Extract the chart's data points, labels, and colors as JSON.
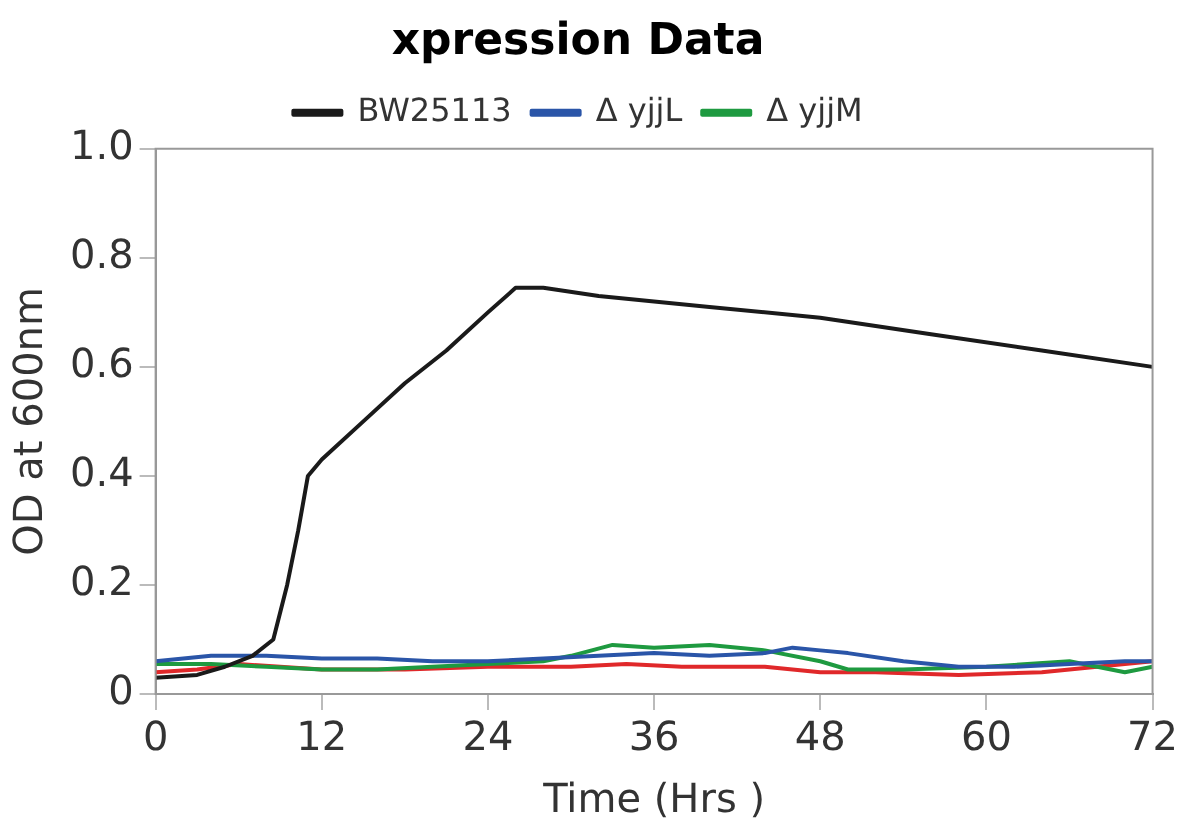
{
  "chart_data": {
    "type": "line",
    "title": "xpression Data",
    "xlabel": "Time (Hrs )",
    "ylabel": "OD at 600nm",
    "xlim": [
      0,
      72
    ],
    "xticks": [
      0,
      12,
      24,
      36,
      48,
      60,
      72
    ],
    "ylim": [
      0,
      1
    ],
    "yticks": [
      0,
      0.2,
      0.4,
      0.6,
      0.8,
      {
        "value": 1,
        "label": "1.0"
      }
    ],
    "grid": false,
    "legend": "top",
    "marker": "none",
    "line_style": "solid",
    "series": [
      {
        "name": "BW25113",
        "color": "#1a1a1a",
        "x": [
          0,
          3,
          5,
          7,
          8.5,
          9.5,
          10.3,
          11,
          12,
          15,
          18,
          21,
          24,
          26,
          28,
          32,
          40,
          48,
          56,
          64,
          72
        ],
        "values": [
          0.03,
          0.035,
          0.05,
          0.07,
          0.1,
          0.2,
          0.3,
          0.4,
          0.43,
          0.5,
          0.57,
          0.63,
          0.7,
          0.745,
          0.745,
          0.73,
          0.71,
          0.69,
          0.66,
          0.63,
          0.6
        ]
      },
      {
        "name": "Δ yjjL",
        "color": "#2a55a8",
        "x": [
          0,
          4,
          8,
          12,
          16,
          20,
          24,
          28,
          32,
          36,
          40,
          44,
          46,
          48,
          50,
          54,
          58,
          62,
          66,
          70,
          72
        ],
        "values": [
          0.06,
          0.07,
          0.07,
          0.065,
          0.065,
          0.06,
          0.06,
          0.065,
          0.07,
          0.075,
          0.07,
          0.075,
          0.085,
          0.08,
          0.075,
          0.06,
          0.05,
          0.05,
          0.055,
          0.06,
          0.06
        ]
      },
      {
        "name": "Δ yjjM",
        "color": "#1e9a40",
        "x": [
          0,
          4,
          8,
          12,
          16,
          20,
          24,
          28,
          30,
          33,
          36,
          40,
          44,
          48,
          50,
          54,
          60,
          66,
          70,
          72
        ],
        "values": [
          0.055,
          0.055,
          0.05,
          0.045,
          0.045,
          0.05,
          0.055,
          0.06,
          0.07,
          0.09,
          0.085,
          0.09,
          0.08,
          0.06,
          0.045,
          0.045,
          0.05,
          0.06,
          0.04,
          0.05
        ]
      },
      {
        "color": "#e0282a",
        "x": [
          0,
          3,
          6,
          9,
          12,
          18,
          24,
          30,
          34,
          38,
          44,
          48,
          52,
          58,
          64,
          68,
          72
        ],
        "values": [
          0.04,
          0.045,
          0.055,
          0.05,
          0.045,
          0.045,
          0.05,
          0.05,
          0.055,
          0.05,
          0.05,
          0.04,
          0.04,
          0.035,
          0.04,
          0.05,
          0.06
        ]
      }
    ]
  }
}
